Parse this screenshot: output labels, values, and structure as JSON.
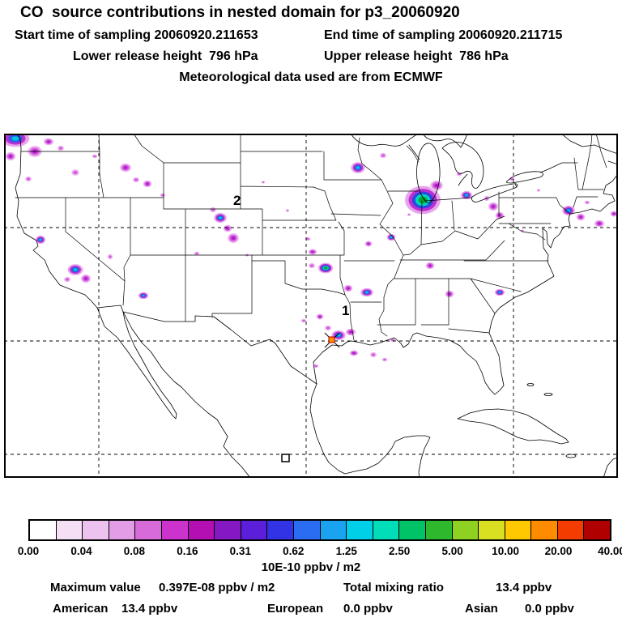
{
  "header": {
    "title": "CO  source contributions in nested domain for p3_20060920",
    "start_time": "Start time of sampling 20060920.211653",
    "end_time": "End time of sampling 20060920.211715",
    "lower_release": "Lower release height  796 hPa",
    "upper_release": "Upper release height  786 hPa",
    "met_data": "Meteorological data used are from ECMWF"
  },
  "map": {
    "markers": [
      {
        "label": "2"
      },
      {
        "label": "1"
      }
    ]
  },
  "colorbar": {
    "tick_labels": [
      "0.00",
      "0.04",
      "0.08",
      "0.16",
      "0.31",
      "0.62",
      "1.25",
      "2.50",
      "5.00",
      "10.00",
      "20.00",
      "40.00"
    ],
    "unit_label": "10E-10 ppbv / m2",
    "colors": [
      "#ffffff",
      "#f5dff5",
      "#eec2ee",
      "#e39de6",
      "#d66bd9",
      "#cc33cc",
      "#b30fb3",
      "#8419c4",
      "#5c1fd9",
      "#3333e6",
      "#2b6df2",
      "#1aa3f0",
      "#00cfe8",
      "#00ddb8",
      "#00c267",
      "#2eb82e",
      "#8fd122",
      "#d9e021",
      "#ffc800",
      "#ff8c00",
      "#f53c00",
      "#b00000"
    ]
  },
  "footer": {
    "max_label": "Maximum value",
    "max_value": "0.397E-08 ppbv / m2",
    "total_label": "Total mixing ratio",
    "total_value": "13.4 ppbv",
    "regions": [
      {
        "name": "American",
        "value": "13.4 ppbv"
      },
      {
        "name": "European",
        "value": "0.0 ppbv"
      },
      {
        "name": "Asian",
        "value": "0.0 ppbv"
      }
    ]
  },
  "chart_data": {
    "type": "heatmap",
    "title": "CO source contributions in nested domain for p3_20060920",
    "colorbar_boundaries": [
      0.0,
      0.04,
      0.08,
      0.16,
      0.31,
      0.62,
      1.25,
      2.5,
      5.0,
      10.0,
      20.0,
      40.0
    ],
    "colorbar_unit": "10E-10 ppbv / m2",
    "maximum_value": "0.397E-08 ppbv / m2",
    "total_mixing_ratio_ppbv": 13.4,
    "source_contributions_ppbv": {
      "American": 13.4,
      "European": 0.0,
      "Asian": 0.0
    },
    "sampling_start": "20060920.211653",
    "sampling_end": "20060920.211715",
    "lower_release_height_hPa": 796,
    "upper_release_height_hPa": 786,
    "meteorology": "ECMWF"
  }
}
